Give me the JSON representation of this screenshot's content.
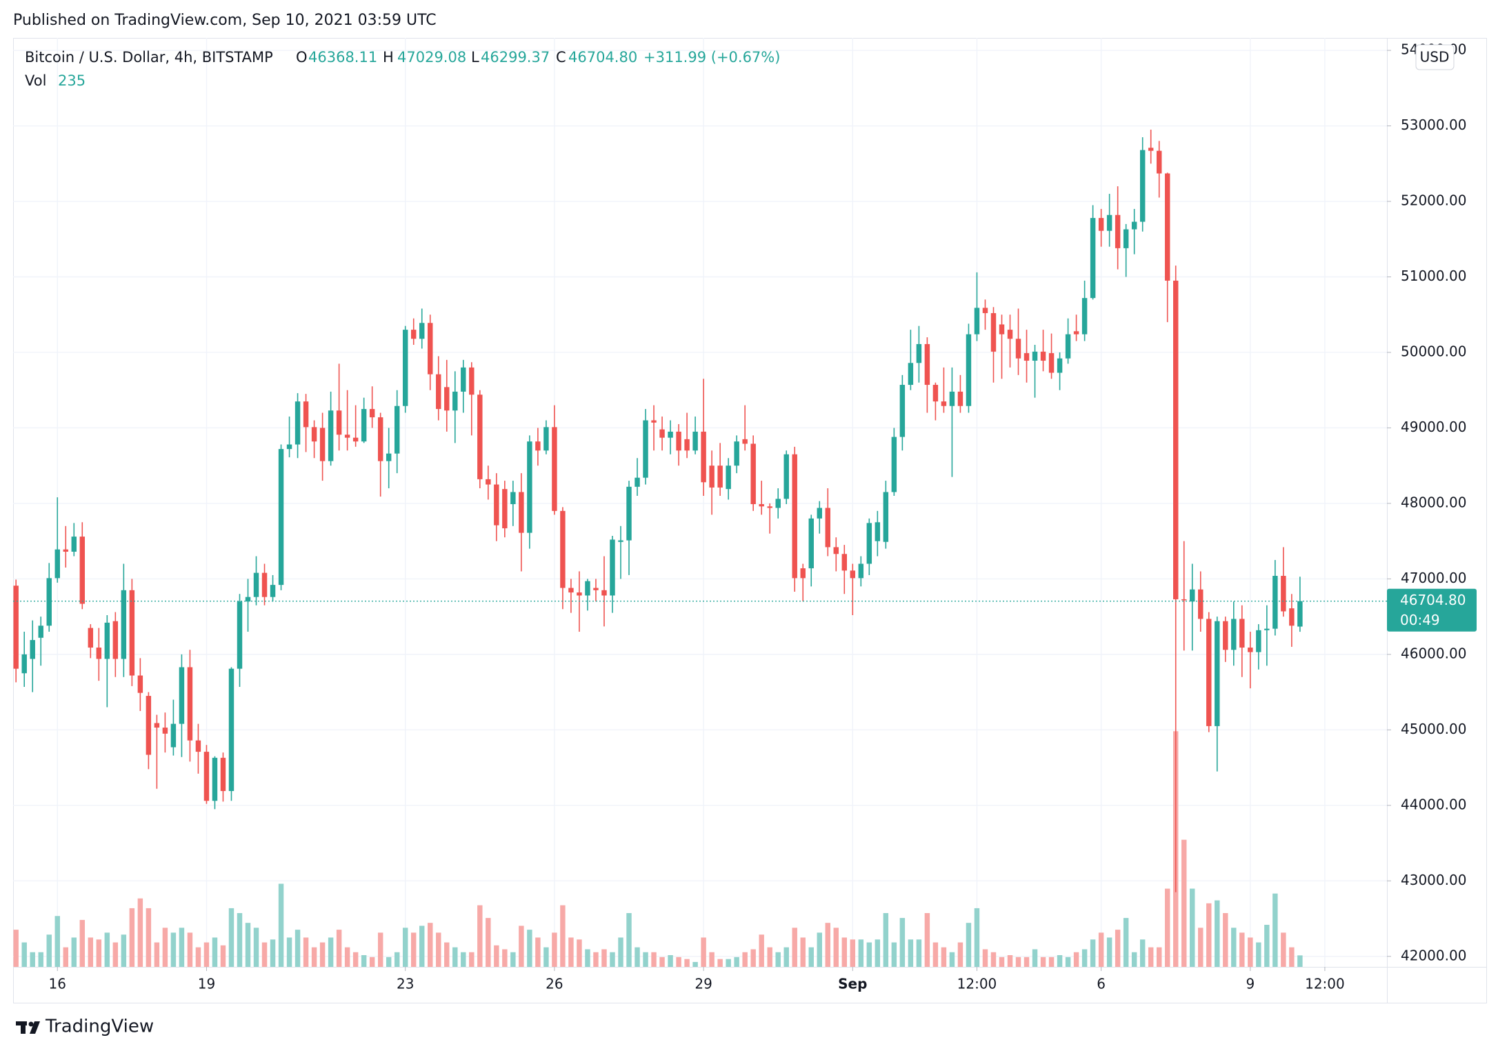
{
  "header": "Published on TradingView.com, Sep 10, 2021 03:59 UTC",
  "footer": "TradingView",
  "chart_data": {
    "type": "candlestick",
    "title": "Bitcoin / U.S. Dollar, 4h, BITSTAMP",
    "ohlc_letters": [
      "O",
      "H",
      "L",
      "C"
    ],
    "change_label": "+311.99 (+0.67%)",
    "volume_label": "Vol",
    "currency": "USD",
    "last_price": {
      "value": 46704.8,
      "label": "46704.80"
    },
    "countdown": "00:49",
    "up_color": "#26a69a",
    "down_color": "#ef5350",
    "up_volume_color": "#92d2cc",
    "down_volume_color": "#f7a9a7",
    "grid": true,
    "open": [
      46910,
      45750,
      45940,
      46220,
      46380,
      47010,
      47390,
      47360,
      47560,
      46350,
      46090,
      45940,
      46440,
      45940,
      46850,
      45720,
      45450,
      45090,
      45030,
      44770,
      45080,
      45830,
      44860,
      44710,
      44060,
      44630,
      44190,
      45810,
      46700,
      46760,
      47080,
      46760,
      46920,
      48720,
      48780,
      49350,
      49010,
      49000,
      48560,
      49230,
      48910,
      48870,
      48820,
      49250,
      49140,
      48560,
      48660,
      49290,
      50300,
      50180,
      50390,
      49710,
      49540,
      49230,
      49480,
      49800,
      49440,
      48320,
      48250,
      48190,
      47990,
      48150,
      47610,
      48820,
      48700,
      49010,
      47900,
      46880,
      46820,
      46780,
      46880,
      46850,
      46780,
      47490,
      47510,
      48220,
      48340,
      49100,
      48980,
      48870,
      48950,
      48850,
      48700,
      48950,
      48500,
      48500,
      48190,
      48500,
      48850,
      48790,
      47990,
      47960,
      47940,
      48060,
      48650,
      47140,
      47140,
      47800,
      47940,
      47420,
      47330,
      47110,
      47010,
      47200,
      47500,
      47490,
      48150,
      48880,
      49570,
      49860,
      50110,
      49570,
      49350,
      49290,
      49480,
      49290,
      50240,
      50590,
      50520,
      50370,
      50300,
      50180,
      49990,
      49890,
      50010,
      49990,
      49730,
      49920,
      50280,
      50240,
      50720,
      51780,
      51610,
      51820,
      51380,
      51630,
      51730,
      52710,
      52670,
      52370,
      50950,
      46730,
      46700,
      46860,
      46470,
      45050,
      46440,
      46060,
      46470,
      46090,
      46030,
      46320,
      46340,
      47040,
      46610,
      46368.11
    ],
    "high": [
      46990,
      46300,
      46450,
      46500,
      47210,
      48080,
      47700,
      47740,
      47750,
      46400,
      46350,
      46520,
      46560,
      47200,
      47000,
      45950,
      45500,
      45200,
      45230,
      45400,
      46000,
      46060,
      45080,
      44800,
      44650,
      44700,
      45830,
      46800,
      47000,
      47300,
      47200,
      47050,
      48780,
      49150,
      49460,
      49450,
      49100,
      49200,
      49480,
      49850,
      49500,
      49300,
      49400,
      49550,
      49200,
      49000,
      49500,
      50350,
      50450,
      50580,
      50500,
      49950,
      49900,
      49750,
      49900,
      49870,
      49500,
      48500,
      48400,
      48300,
      48300,
      48400,
      48900,
      49000,
      49100,
      49300,
      47950,
      47000,
      47100,
      47000,
      47000,
      47300,
      47570,
      47700,
      48300,
      48600,
      49250,
      49300,
      49150,
      49100,
      49050,
      49200,
      49150,
      49650,
      48700,
      48800,
      48600,
      48900,
      49300,
      48900,
      48300,
      48000,
      48200,
      48700,
      48750,
      47200,
      47850,
      48030,
      48200,
      47550,
      47450,
      47200,
      47300,
      47800,
      47900,
      48300,
      49000,
      49700,
      50300,
      50350,
      50200,
      49600,
      49800,
      49800,
      49700,
      50380,
      51060,
      50700,
      50600,
      50500,
      50500,
      50580,
      50300,
      50100,
      50300,
      50250,
      50000,
      50450,
      50500,
      50950,
      51950,
      51900,
      52100,
      52200,
      51700,
      51900,
      52850,
      52950,
      52800,
      52380,
      51150,
      47500,
      47200,
      47100,
      46560,
      46500,
      46500,
      46700,
      46650,
      46300,
      46400,
      46650,
      47250,
      47420,
      46800,
      47029.08
    ],
    "low": [
      45630,
      45570,
      45500,
      45850,
      46300,
      46950,
      47150,
      47300,
      46600,
      45950,
      45650,
      45300,
      45700,
      45700,
      45580,
      45250,
      44480,
      44220,
      44700,
      44660,
      44640,
      44580,
      44420,
      44020,
      43950,
      44050,
      44060,
      45570,
      46300,
      46650,
      46650,
      46700,
      46850,
      48610,
      48600,
      48680,
      48600,
      48300,
      48500,
      48700,
      48700,
      48750,
      48800,
      49000,
      48090,
      48200,
      48400,
      49200,
      50100,
      50050,
      49500,
      49100,
      48950,
      48800,
      49200,
      48900,
      48200,
      48050,
      47500,
      47550,
      47700,
      47100,
      47400,
      48500,
      48650,
      47850,
      46600,
      46550,
      46300,
      46580,
      46700,
      46370,
      46550,
      47000,
      47050,
      48100,
      48250,
      48700,
      48700,
      48650,
      48500,
      48600,
      48650,
      48100,
      47850,
      48100,
      48050,
      48400,
      48700,
      47900,
      47850,
      47600,
      47800,
      47990,
      46830,
      46700,
      46900,
      47600,
      47300,
      47100,
      46800,
      46520,
      46900,
      47050,
      47300,
      47400,
      48100,
      48700,
      49500,
      49600,
      49200,
      49100,
      49200,
      48350,
      49200,
      49200,
      50150,
      50300,
      49600,
      49650,
      49800,
      49700,
      49600,
      49400,
      49750,
      49650,
      49500,
      49850,
      50150,
      50150,
      50700,
      51400,
      51400,
      51100,
      51000,
      51300,
      51600,
      52500,
      52050,
      50400,
      42850,
      46050,
      46050,
      46300,
      44970,
      44450,
      45900,
      45850,
      45700,
      45550,
      45800,
      45850,
      46250,
      46500,
      46100,
      46299.37
    ],
    "close": [
      45810,
      46000,
      46190,
      46380,
      47010,
      47390,
      47360,
      47560,
      46670,
      46090,
      45940,
      46420,
      45940,
      46850,
      45720,
      45490,
      44670,
      45030,
      44950,
      45080,
      45830,
      44860,
      44710,
      44060,
      44630,
      44190,
      45810,
      46700,
      46760,
      47080,
      46760,
      46920,
      48720,
      48780,
      49350,
      49010,
      48820,
      48560,
      49230,
      48910,
      48870,
      48820,
      49250,
      49140,
      48560,
      48660,
      49290,
      50300,
      50180,
      50390,
      49710,
      49250,
      49230,
      49480,
      49800,
      49440,
      48320,
      48250,
      47710,
      47670,
      48150,
      47610,
      48820,
      48700,
      49010,
      47900,
      46880,
      46820,
      46780,
      46970,
      46850,
      46780,
      47520,
      47510,
      48220,
      48340,
      49100,
      49070,
      48870,
      48950,
      48700,
      48700,
      48950,
      48280,
      48210,
      48210,
      48500,
      48820,
      48790,
      47990,
      47960,
      47940,
      48060,
      48650,
      47010,
      47010,
      47800,
      47940,
      47420,
      47330,
      47110,
      47010,
      47200,
      47740,
      47750,
      48150,
      48880,
      49570,
      49860,
      50110,
      49570,
      49350,
      49290,
      49480,
      49290,
      50240,
      50590,
      50520,
      50010,
      50240,
      50180,
      49920,
      49890,
      50010,
      49890,
      49730,
      49920,
      50240,
      50240,
      50720,
      51780,
      51610,
      51820,
      51380,
      51630,
      51730,
      52680,
      52670,
      52370,
      50950,
      46730,
      46720,
      46860,
      46470,
      45050,
      46440,
      46060,
      46470,
      46090,
      46030,
      46320,
      46340,
      47040,
      46570,
      46380,
      46704.8
    ],
    "volume": [
      760,
      500,
      300,
      300,
      660,
      1040,
      400,
      600,
      960,
      600,
      560,
      700,
      500,
      660,
      1200,
      1400,
      1200,
      500,
      800,
      700,
      800,
      700,
      400,
      500,
      600,
      440,
      1200,
      1100,
      900,
      800,
      500,
      560,
      1700,
      600,
      760,
      600,
      400,
      500,
      600,
      760,
      400,
      300,
      240,
      200,
      700,
      200,
      300,
      800,
      700,
      840,
      900,
      700,
      500,
      400,
      300,
      300,
      1260,
      1000,
      440,
      360,
      300,
      840,
      760,
      600,
      400,
      700,
      1260,
      600,
      560,
      360,
      300,
      360,
      300,
      600,
      1100,
      400,
      300,
      300,
      200,
      240,
      200,
      160,
      100,
      600,
      300,
      160,
      160,
      200,
      300,
      360,
      660,
      400,
      300,
      400,
      800,
      600,
      400,
      700,
      900,
      800,
      600,
      560,
      560,
      500,
      560,
      1100,
      500,
      1000,
      560,
      560,
      1100,
      500,
      400,
      300,
      500,
      900,
      1200,
      360,
      300,
      200,
      240,
      200,
      200,
      360,
      200,
      200,
      240,
      200,
      300,
      360,
      560,
      700,
      600,
      760,
      1000,
      300,
      560,
      400,
      400,
      1600,
      4820,
      2600,
      1600,
      800,
      1300,
      1360,
      1100,
      800,
      700,
      600,
      500,
      860,
      1500,
      700,
      400,
      235
    ],
    "xlim": [
      -0.35,
      165.5
    ],
    "xticks": [
      {
        "value": 5,
        "label": "16"
      },
      {
        "value": 23,
        "label": "19"
      },
      {
        "value": 47,
        "label": "23"
      },
      {
        "value": 65,
        "label": "26"
      },
      {
        "value": 83,
        "label": "29"
      },
      {
        "value": 101,
        "label": "Sep"
      },
      {
        "value": 116,
        "label": "12:00"
      },
      {
        "value": 131,
        "label": "6"
      },
      {
        "value": 149,
        "label": "9"
      },
      {
        "value": 158,
        "label": "12:00"
      }
    ],
    "ylim": [
      41861,
      54165
    ],
    "yticks": [
      {
        "value": 42000,
        "label": "42000.00"
      },
      {
        "value": 43000,
        "label": "43000.00"
      },
      {
        "value": 44000,
        "label": "44000.00"
      },
      {
        "value": 45000,
        "label": "45000.00"
      },
      {
        "value": 46000,
        "label": "46000.00"
      },
      {
        "value": 47000,
        "label": "47000.00"
      },
      {
        "value": 48000,
        "label": "48000.00"
      },
      {
        "value": 49000,
        "label": "49000.00"
      },
      {
        "value": 50000,
        "label": "50000.00"
      },
      {
        "value": 51000,
        "label": "51000.00"
      },
      {
        "value": 52000,
        "label": "52000.00"
      },
      {
        "value": 53000,
        "label": "53000.00"
      },
      {
        "value": 54000,
        "label": "54000.00"
      }
    ],
    "y2lim": [
      0,
      19000
    ]
  }
}
